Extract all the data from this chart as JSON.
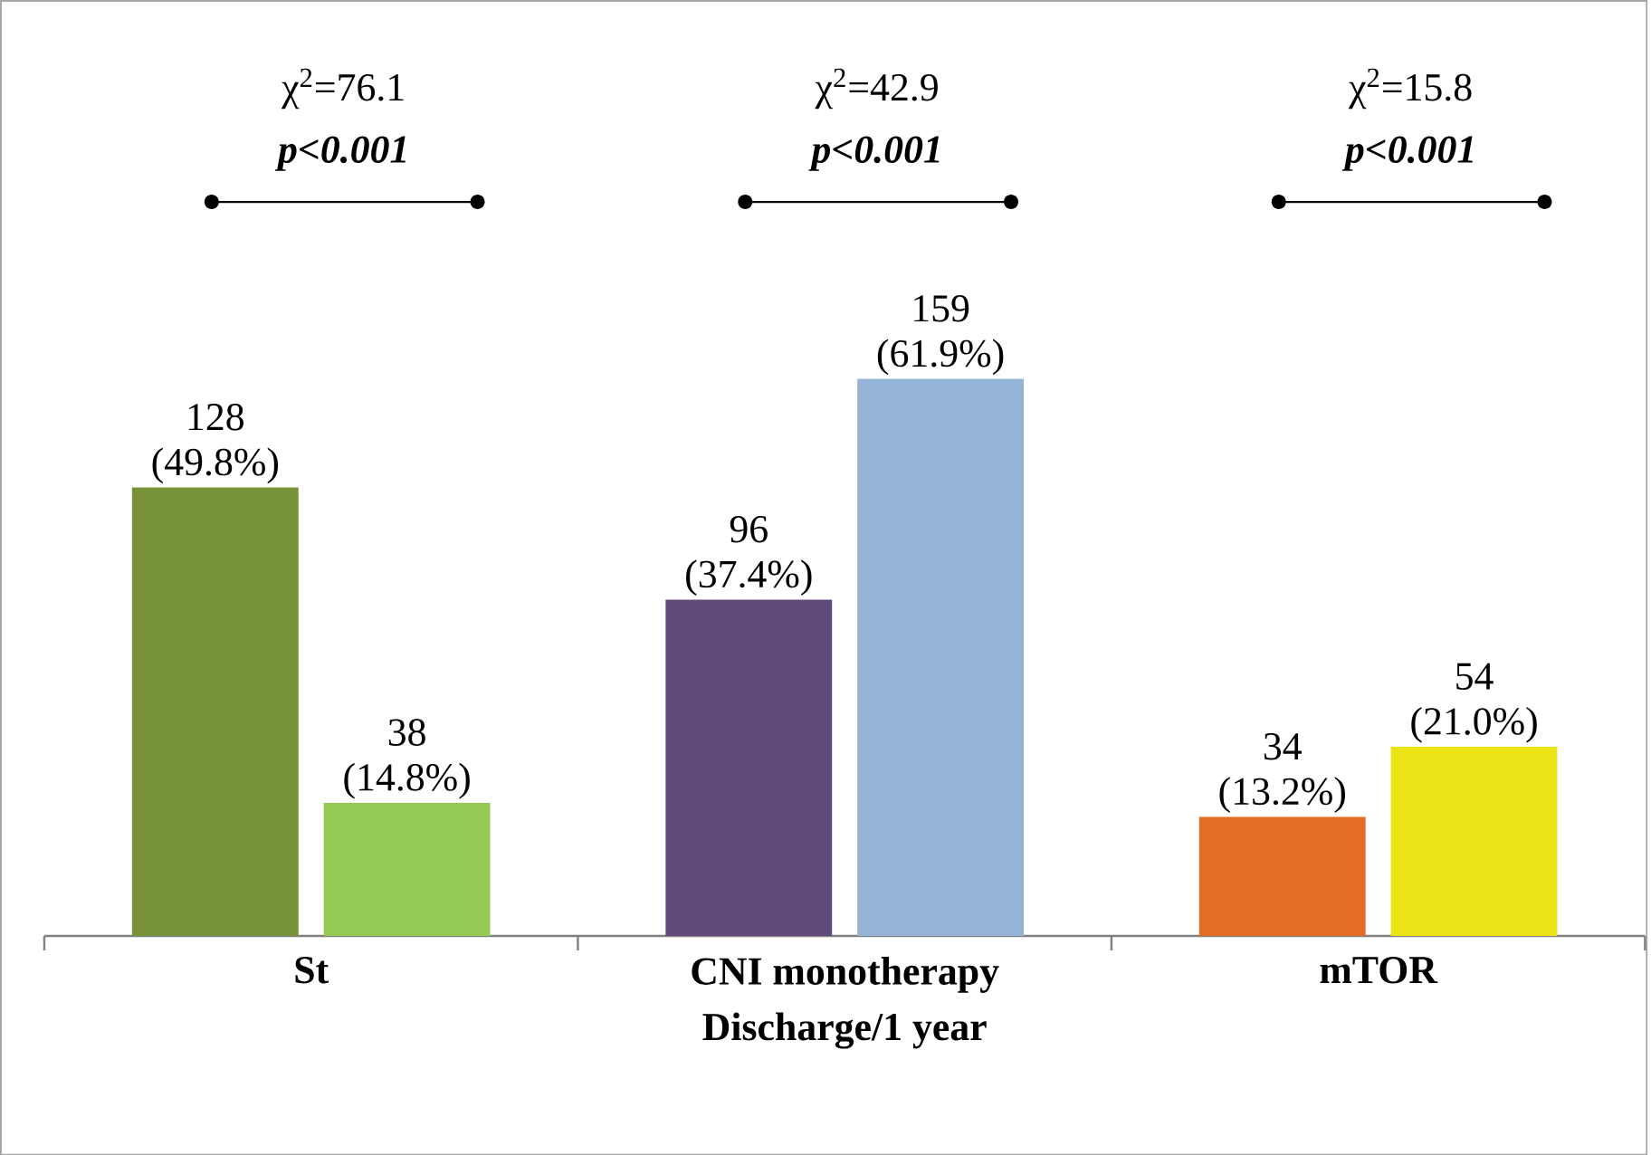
{
  "chart_data": {
    "type": "bar",
    "categories": [
      "St",
      "CNI monotherapy",
      "mTOR"
    ],
    "xlabel": "Discharge/1 year",
    "series": [
      {
        "colors": [
          "#78923a",
          "#604a7b",
          "#e46c23"
        ],
        "values": [
          128,
          96,
          34
        ],
        "value_labels": [
          "128 (49.8%)",
          "96 (37.4%)",
          "34 (13.2%)"
        ]
      },
      {
        "colors": [
          "#94c953",
          "#95b3d7",
          "#ece316"
        ],
        "values": [
          38,
          159,
          54
        ],
        "value_labels": [
          "38 (14.8%)",
          "159 (61.9%)",
          "54 (21.0%)"
        ]
      }
    ],
    "annotations": [
      "χ$^{2}$=76.1",
      "p<0.001",
      "χ$^{2}$=42.9",
      "p<0.001",
      "χ$^{2}$=15.8",
      "p<0.001"
    ]
  }
}
